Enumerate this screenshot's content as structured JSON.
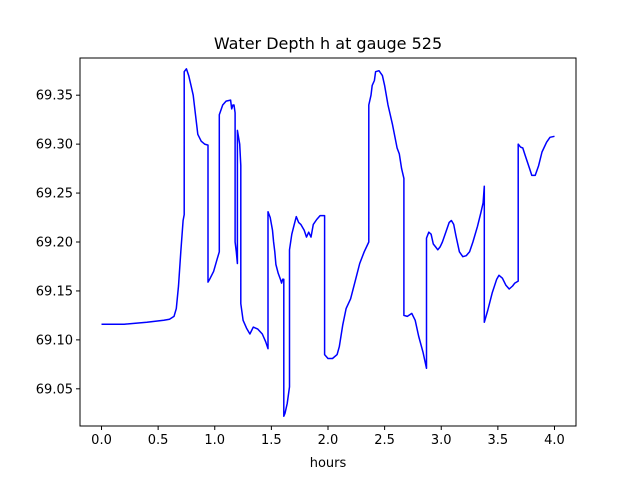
{
  "chart_data": {
    "type": "line",
    "title": "Water Depth h at gauge 525",
    "xlabel": "hours",
    "ylabel": "",
    "xlim": [
      -0.19,
      4.19
    ],
    "ylim": [
      69.012,
      69.388
    ],
    "grid": false,
    "xticks": [
      0.0,
      0.5,
      1.0,
      1.5,
      2.0,
      2.5,
      3.0,
      3.5,
      4.0
    ],
    "xtick_labels": [
      "0.0",
      "0.5",
      "1.0",
      "1.5",
      "2.0",
      "2.5",
      "3.0",
      "3.5",
      "4.0"
    ],
    "yticks": [
      69.05,
      69.1,
      69.15,
      69.2,
      69.25,
      69.3,
      69.35
    ],
    "ytick_labels": [
      "69.05",
      "69.10",
      "69.15",
      "69.20",
      "69.25",
      "69.30",
      "69.35"
    ],
    "colors": {
      "series": "#0000ff",
      "axes": "#000000",
      "background": "#ffffff"
    },
    "series": [
      {
        "points": [
          [
            0.0,
            69.116
          ],
          [
            0.2,
            69.116
          ],
          [
            0.4,
            69.118
          ],
          [
            0.55,
            69.12
          ],
          [
            0.6,
            69.121
          ],
          [
            0.64,
            69.124
          ],
          [
            0.66,
            69.132
          ],
          [
            0.68,
            69.155
          ],
          [
            0.7,
            69.19
          ],
          [
            0.72,
            69.222
          ],
          [
            0.73,
            69.228
          ],
          [
            0.73,
            69.374
          ],
          [
            0.75,
            69.377
          ],
          [
            0.77,
            69.37
          ],
          [
            0.79,
            69.36
          ],
          [
            0.81,
            69.35
          ],
          [
            0.83,
            69.33
          ],
          [
            0.85,
            69.31
          ],
          [
            0.88,
            69.303
          ],
          [
            0.91,
            69.3
          ],
          [
            0.94,
            69.299
          ],
          [
            0.94,
            69.159
          ],
          [
            0.96,
            69.163
          ],
          [
            0.99,
            69.17
          ],
          [
            1.02,
            69.182
          ],
          [
            1.04,
            69.19
          ],
          [
            1.04,
            69.33
          ],
          [
            1.07,
            69.34
          ],
          [
            1.1,
            69.344
          ],
          [
            1.14,
            69.345
          ],
          [
            1.15,
            69.336
          ],
          [
            1.16,
            69.34
          ],
          [
            1.17,
            69.34
          ],
          [
            1.18,
            69.332
          ],
          [
            1.18,
            69.2
          ],
          [
            1.19,
            69.19
          ],
          [
            1.2,
            69.178
          ],
          [
            1.2,
            69.314
          ],
          [
            1.22,
            69.3
          ],
          [
            1.23,
            69.278
          ],
          [
            1.23,
            69.137
          ],
          [
            1.25,
            69.12
          ],
          [
            1.28,
            69.112
          ],
          [
            1.31,
            69.106
          ],
          [
            1.34,
            69.113
          ],
          [
            1.38,
            69.111
          ],
          [
            1.42,
            69.106
          ],
          [
            1.45,
            69.098
          ],
          [
            1.47,
            69.091
          ],
          [
            1.47,
            69.231
          ],
          [
            1.49,
            69.225
          ],
          [
            1.51,
            69.212
          ],
          [
            1.52,
            69.2
          ],
          [
            1.53,
            69.19
          ],
          [
            1.54,
            69.177
          ],
          [
            1.56,
            69.168
          ],
          [
            1.58,
            69.162
          ],
          [
            1.59,
            69.158
          ],
          [
            1.6,
            69.162
          ],
          [
            1.61,
            69.162
          ],
          [
            1.61,
            69.022
          ],
          [
            1.62,
            69.025
          ],
          [
            1.64,
            69.035
          ],
          [
            1.66,
            69.052
          ],
          [
            1.66,
            69.192
          ],
          [
            1.68,
            69.208
          ],
          [
            1.7,
            69.217
          ],
          [
            1.72,
            69.226
          ],
          [
            1.74,
            69.22
          ],
          [
            1.76,
            69.218
          ],
          [
            1.79,
            69.212
          ],
          [
            1.81,
            69.205
          ],
          [
            1.83,
            69.21
          ],
          [
            1.85,
            69.205
          ],
          [
            1.87,
            69.218
          ],
          [
            1.9,
            69.223
          ],
          [
            1.93,
            69.227
          ],
          [
            1.97,
            69.227
          ],
          [
            1.97,
            69.085
          ],
          [
            2.0,
            69.081
          ],
          [
            2.04,
            69.081
          ],
          [
            2.08,
            69.085
          ],
          [
            2.1,
            69.093
          ],
          [
            2.13,
            69.115
          ],
          [
            2.16,
            69.132
          ],
          [
            2.2,
            69.142
          ],
          [
            2.24,
            69.16
          ],
          [
            2.28,
            69.178
          ],
          [
            2.32,
            69.19
          ],
          [
            2.36,
            69.2
          ],
          [
            2.36,
            69.34
          ],
          [
            2.38,
            69.35
          ],
          [
            2.39,
            69.36
          ],
          [
            2.41,
            69.365
          ],
          [
            2.42,
            69.374
          ],
          [
            2.45,
            69.375
          ],
          [
            2.48,
            69.37
          ],
          [
            2.5,
            69.36
          ],
          [
            2.53,
            69.34
          ],
          [
            2.57,
            69.32
          ],
          [
            2.61,
            69.296
          ],
          [
            2.63,
            69.29
          ],
          [
            2.65,
            69.275
          ],
          [
            2.67,
            69.265
          ],
          [
            2.67,
            69.125
          ],
          [
            2.7,
            69.124
          ],
          [
            2.74,
            69.127
          ],
          [
            2.77,
            69.12
          ],
          [
            2.8,
            69.104
          ],
          [
            2.84,
            69.087
          ],
          [
            2.87,
            69.071
          ],
          [
            2.87,
            69.204
          ],
          [
            2.89,
            69.21
          ],
          [
            2.91,
            69.208
          ],
          [
            2.93,
            69.198
          ],
          [
            2.95,
            69.195
          ],
          [
            2.97,
            69.192
          ],
          [
            2.99,
            69.195
          ],
          [
            3.01,
            69.2
          ],
          [
            3.04,
            69.21
          ],
          [
            3.07,
            69.22
          ],
          [
            3.09,
            69.222
          ],
          [
            3.11,
            69.218
          ],
          [
            3.13,
            69.206
          ],
          [
            3.16,
            69.19
          ],
          [
            3.19,
            69.185
          ],
          [
            3.22,
            69.186
          ],
          [
            3.25,
            69.19
          ],
          [
            3.28,
            69.2
          ],
          [
            3.32,
            69.216
          ],
          [
            3.35,
            69.23
          ],
          [
            3.37,
            69.24
          ],
          [
            3.38,
            69.257
          ],
          [
            3.38,
            69.118
          ],
          [
            3.41,
            69.13
          ],
          [
            3.45,
            69.148
          ],
          [
            3.49,
            69.162
          ],
          [
            3.51,
            69.166
          ],
          [
            3.54,
            69.163
          ],
          [
            3.57,
            69.156
          ],
          [
            3.6,
            69.152
          ],
          [
            3.63,
            69.155
          ],
          [
            3.65,
            69.158
          ],
          [
            3.68,
            69.16
          ],
          [
            3.68,
            69.3
          ],
          [
            3.7,
            69.297
          ],
          [
            3.72,
            69.296
          ],
          [
            3.74,
            69.289
          ],
          [
            3.76,
            69.282
          ],
          [
            3.78,
            69.275
          ],
          [
            3.8,
            69.268
          ],
          [
            3.83,
            69.268
          ],
          [
            3.86,
            69.278
          ],
          [
            3.89,
            69.292
          ],
          [
            3.93,
            69.302
          ],
          [
            3.96,
            69.307
          ],
          [
            4.0,
            69.308
          ]
        ]
      }
    ]
  }
}
